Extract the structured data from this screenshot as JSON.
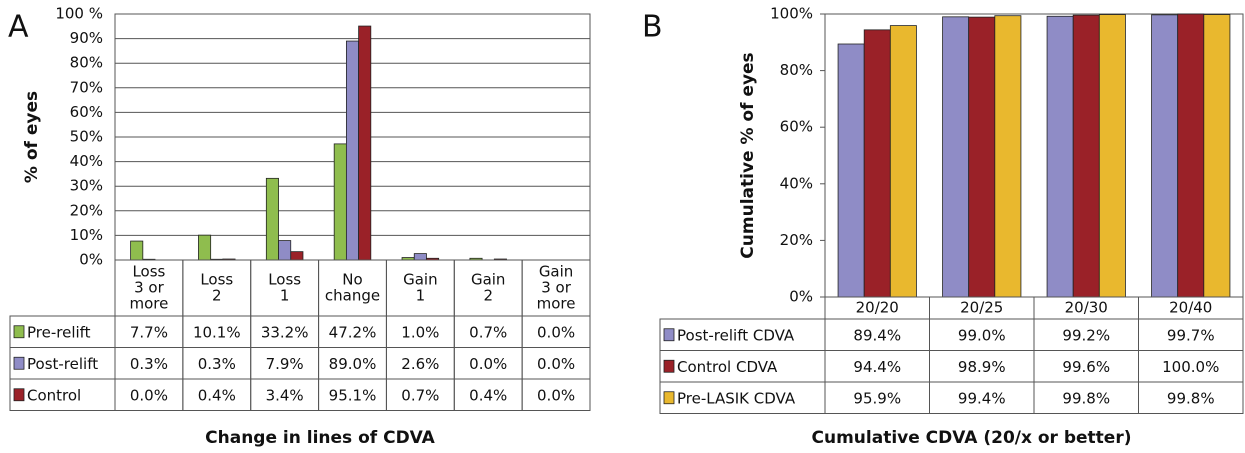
{
  "chart_data": [
    {
      "type": "bar",
      "panel_label": "A",
      "ylabel": "% of eyes",
      "xlabel": "Change in lines of CDVA",
      "categories": [
        [
          "Loss",
          "3 or",
          "more"
        ],
        [
          "Loss",
          "2"
        ],
        [
          "Loss",
          "1"
        ],
        [
          "No",
          "change"
        ],
        [
          "Gain",
          "1"
        ],
        [
          "Gain",
          "2"
        ],
        [
          "Gain",
          "3 or",
          "more"
        ]
      ],
      "ylim": [
        0,
        100
      ],
      "yticks": [
        {
          "value": 0,
          "label": "0%"
        },
        {
          "value": 10,
          "label": "10%"
        },
        {
          "value": 20,
          "label": "20%"
        },
        {
          "value": 30,
          "label": "30%"
        },
        {
          "value": 40,
          "label": "40%"
        },
        {
          "value": 50,
          "label": "50%"
        },
        {
          "value": 60,
          "label": "60%"
        },
        {
          "value": 70,
          "label": "70%"
        },
        {
          "value": 80,
          "label": "80%"
        },
        {
          "value": 90,
          "label": "90%"
        },
        {
          "value": 100,
          "label": "100 %"
        }
      ],
      "grid": true,
      "series": [
        {
          "name": "Pre-relift",
          "color": "#8fbd4e",
          "values": [
            7.7,
            10.1,
            33.2,
            47.2,
            1.0,
            0.7,
            0.0
          ],
          "value_labels": [
            "7.7%",
            "10.1%",
            "33.2%",
            "47.2%",
            "1.0%",
            "0.7%",
            "0.0%"
          ]
        },
        {
          "name": "Post-relift",
          "color": "#8f8cc6",
          "values": [
            0.3,
            0.3,
            7.9,
            89.0,
            2.6,
            0.0,
            0.0
          ],
          "value_labels": [
            "0.3%",
            "0.3%",
            "7.9%",
            "89.0%",
            "2.6%",
            "0.0%",
            "0.0%"
          ]
        },
        {
          "name": "Control",
          "color": "#9a2128",
          "values": [
            0.0,
            0.4,
            3.4,
            95.1,
            0.7,
            0.4,
            0.0
          ],
          "value_labels": [
            "0.0%",
            "0.4%",
            "3.4%",
            "95.1%",
            "0.7%",
            "0.4%",
            "0.0%"
          ]
        }
      ]
    },
    {
      "type": "bar",
      "panel_label": "B",
      "ylabel": "Cumulative % of eyes",
      "xlabel": "Cumulative CDVA (20/x or better)",
      "categories": [
        [
          "20/20"
        ],
        [
          "20/25"
        ],
        [
          "20/30"
        ],
        [
          "20/40"
        ]
      ],
      "ylim": [
        0,
        100
      ],
      "yticks": [
        {
          "value": 0,
          "label": "0%"
        },
        {
          "value": 20,
          "label": "20%"
        },
        {
          "value": 40,
          "label": "40%"
        },
        {
          "value": 60,
          "label": "60%"
        },
        {
          "value": 80,
          "label": "80%"
        },
        {
          "value": 100,
          "label": "100%"
        }
      ],
      "grid": false,
      "series": [
        {
          "name": "Post-relift CDVA",
          "color": "#8f8cc6",
          "values": [
            89.4,
            99.0,
            99.2,
            99.7
          ],
          "value_labels": [
            "89.4%",
            "99.0%",
            "99.2%",
            "99.7%"
          ]
        },
        {
          "name": "Control CDVA",
          "color": "#9a2128",
          "values": [
            94.4,
            98.9,
            99.6,
            100.0
          ],
          "value_labels": [
            "94.4%",
            "98.9%",
            "99.6%",
            "100.0%"
          ]
        },
        {
          "name": "Pre-LASIK CDVA",
          "color": "#e9b82e",
          "values": [
            95.9,
            99.4,
            99.8,
            99.8
          ],
          "value_labels": [
            "95.9%",
            "99.4%",
            "99.8%",
            "99.8%"
          ]
        }
      ]
    }
  ]
}
